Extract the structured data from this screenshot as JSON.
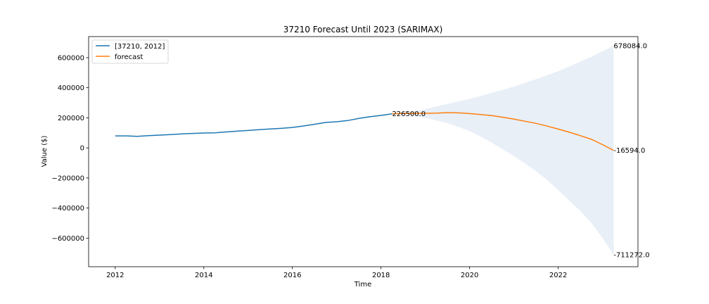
{
  "chart_data": {
    "type": "line",
    "title": "37210 Forecast Until 2023 (SARIMAX)",
    "xlabel": "Time",
    "ylabel": "Value ($)",
    "xlim": [
      2011.4,
      2023.8
    ],
    "ylim": [
      -790000,
      740000
    ],
    "x_ticks": [
      2012,
      2014,
      2016,
      2018,
      2020,
      2022
    ],
    "x_tick_labels": [
      "2012",
      "2014",
      "2016",
      "2018",
      "2020",
      "2022"
    ],
    "y_ticks": [
      600000,
      400000,
      200000,
      0,
      -200000,
      -400000,
      -600000
    ],
    "y_tick_labels": [
      "600000",
      "400000",
      "200000",
      "0",
      "−200000",
      "−400000",
      "−600000"
    ],
    "legend_position": "upper left",
    "grid": false,
    "series": [
      {
        "name": "[37210, 2012]",
        "color": "#1f77b4",
        "x": [
          2012.0,
          2012.25,
          2012.5,
          2012.75,
          2013.0,
          2013.25,
          2013.5,
          2013.75,
          2014.0,
          2014.25,
          2014.5,
          2014.75,
          2015.0,
          2015.25,
          2015.5,
          2015.75,
          2016.0,
          2016.25,
          2016.5,
          2016.75,
          2017.0,
          2017.25,
          2017.5,
          2017.75,
          2018.0,
          2018.25
        ],
        "y": [
          80000,
          80000,
          77000,
          81000,
          85000,
          88000,
          93000,
          96000,
          99000,
          100000,
          106000,
          111000,
          116000,
          121000,
          126000,
          130000,
          136000,
          146000,
          157000,
          169000,
          174000,
          182000,
          196000,
          207000,
          216000,
          226500
        ]
      },
      {
        "name": "forecast",
        "color": "#ff7f0e",
        "x": [
          2018.25,
          2018.5,
          2018.75,
          2019.0,
          2019.25,
          2019.5,
          2019.75,
          2020.0,
          2020.25,
          2020.5,
          2020.75,
          2021.0,
          2021.25,
          2021.5,
          2021.75,
          2022.0,
          2022.25,
          2022.5,
          2022.75,
          2023.0,
          2023.25
        ],
        "y": [
          226500,
          229000,
          230000,
          230000,
          231000,
          234000,
          233000,
          228000,
          222000,
          215000,
          204000,
          191000,
          177000,
          163000,
          145000,
          125000,
          104000,
          81000,
          57000,
          22000,
          -16594
        ]
      }
    ],
    "confidence_band": {
      "color": "#e8eff7",
      "x": [
        2018.25,
        2018.5,
        2018.75,
        2019.0,
        2019.25,
        2019.5,
        2019.75,
        2020.0,
        2020.25,
        2020.5,
        2020.75,
        2021.0,
        2021.25,
        2021.5,
        2021.75,
        2022.0,
        2022.25,
        2022.5,
        2022.75,
        2023.0,
        2023.25
      ],
      "upper": [
        226500,
        232000,
        243000,
        258000,
        275000,
        292000,
        309000,
        326000,
        345000,
        366000,
        386000,
        408000,
        432000,
        457000,
        483000,
        510000,
        541000,
        574000,
        606000,
        642000,
        678084
      ],
      "lower": [
        226500,
        224000,
        215000,
        199000,
        183000,
        164000,
        140000,
        112000,
        75000,
        35000,
        -10000,
        -55000,
        -103000,
        -155000,
        -213000,
        -280000,
        -350000,
        -420000,
        -500000,
        -600000,
        -711272
      ]
    },
    "annotations": [
      {
        "text": "226500.0",
        "x": 2018.25,
        "y": 226500
      },
      {
        "text": "678084.0",
        "x": 2023.25,
        "y": 678084
      },
      {
        "text": "-16594.0",
        "x": 2023.25,
        "y": -16594
      },
      {
        "text": "-711272.0",
        "x": 2023.25,
        "y": -711272
      }
    ]
  }
}
